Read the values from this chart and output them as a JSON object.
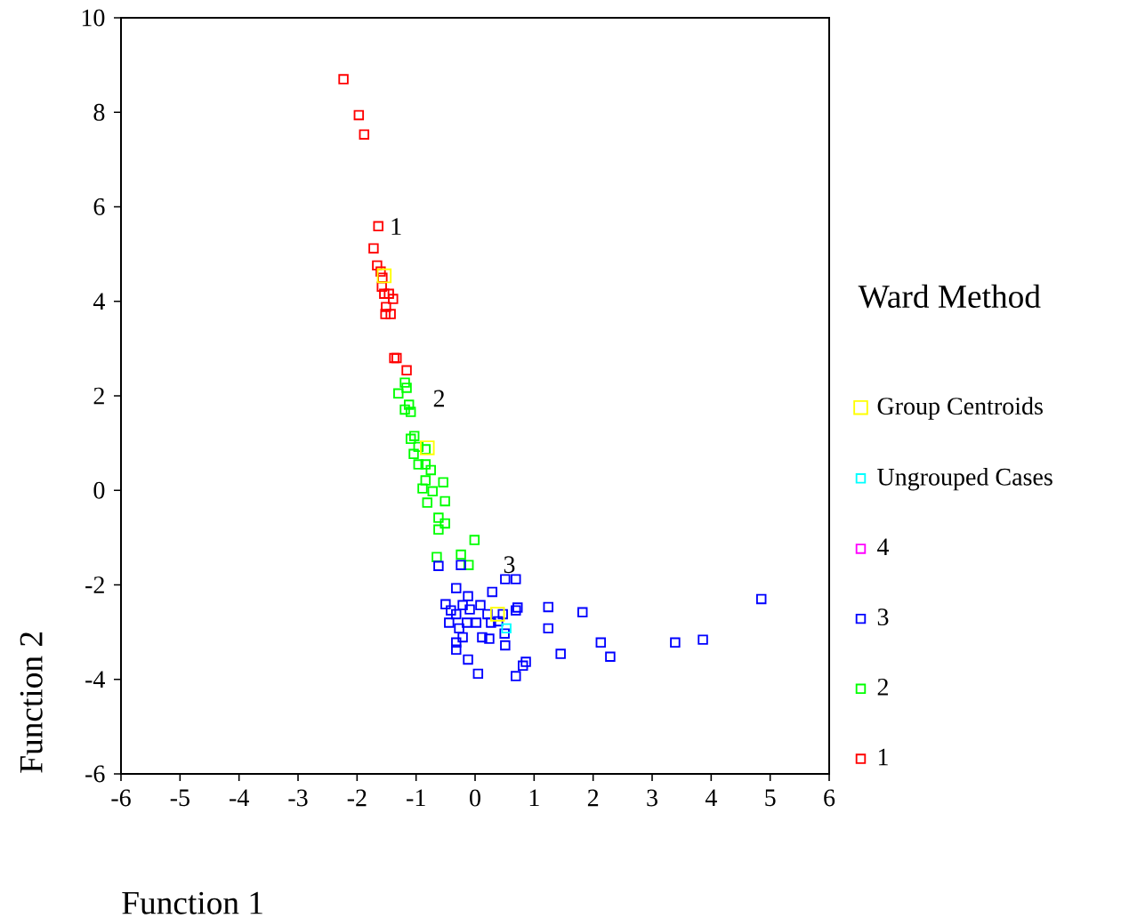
{
  "chart_data": {
    "type": "scatter",
    "xlabel": "Function 1",
    "ylabel": "Function 2",
    "legend_title": "Ward Method",
    "legend": "right",
    "marker": "square",
    "grid": false,
    "xlim": [
      -6,
      6
    ],
    "ylim": [
      -6,
      10
    ],
    "xticks": [
      -6,
      -5,
      -4,
      -3,
      -2,
      -1,
      0,
      1,
      2,
      3,
      4,
      5,
      6
    ],
    "yticks": [
      -6,
      -4,
      -2,
      0,
      2,
      4,
      6,
      8,
      10
    ],
    "annotations": [
      {
        "text": "1",
        "x": -1.54,
        "y": 4.54
      },
      {
        "text": "2",
        "x": -0.81,
        "y": 0.9
      },
      {
        "text": "3",
        "x": 0.38,
        "y": -2.62
      }
    ],
    "series": [
      {
        "name": "Group Centroids",
        "color": "#ffff00",
        "x": [
          -1.54,
          -0.81,
          0.38
        ],
        "values": [
          4.54,
          0.9,
          -2.62
        ]
      },
      {
        "name": "Ungrouped Cases",
        "color": "#00ffff",
        "x": [
          0.53
        ],
        "values": [
          -2.92
        ]
      },
      {
        "name": "4",
        "color": "#ff00ff"
      },
      {
        "name": "3",
        "color": "#0000ff",
        "x": [
          -0.62,
          -0.24,
          0.51,
          0.69,
          -0.32,
          -0.12,
          0.29,
          -0.5,
          -0.41,
          -0.32,
          -0.21,
          -0.09,
          0.09,
          0.21,
          0.47,
          0.69,
          0.72,
          1.24,
          1.82,
          4.85,
          -0.44,
          -0.27,
          -0.14,
          0.02,
          0.27,
          0.39,
          1.24,
          0.12,
          0.24,
          0.5,
          -0.32,
          -0.21,
          0.51,
          2.13,
          3.39,
          3.86,
          1.45,
          2.29,
          -0.12,
          0.86,
          0.81,
          0.05,
          0.69,
          -0.32
        ],
        "values": [
          -1.6,
          -1.58,
          -1.88,
          -1.88,
          -2.07,
          -2.24,
          -2.15,
          -2.41,
          -2.54,
          -2.62,
          -2.43,
          -2.52,
          -2.43,
          -2.62,
          -2.62,
          -2.54,
          -2.48,
          -2.47,
          -2.58,
          -2.3,
          -2.8,
          -2.92,
          -2.8,
          -2.8,
          -2.8,
          -2.77,
          -2.92,
          -3.11,
          -3.14,
          -3.03,
          -3.22,
          -3.11,
          -3.28,
          -3.22,
          -3.22,
          -3.16,
          -3.46,
          -3.52,
          -3.58,
          -3.63,
          -3.71,
          -3.88,
          -3.93,
          -3.37
        ]
      },
      {
        "name": "2",
        "color": "#00ff00",
        "x": [
          -1.3,
          -1.19,
          -1.16,
          -1.19,
          -1.12,
          -1.09,
          -1.03,
          -1.09,
          -0.96,
          -0.84,
          -1.04,
          -0.96,
          -0.84,
          -0.75,
          -0.84,
          -0.54,
          -0.89,
          -0.72,
          -0.51,
          -0.81,
          -0.62,
          -0.51,
          -0.62,
          -0.01,
          -0.24,
          -0.65,
          -0.11
        ],
        "values": [
          2.05,
          2.28,
          2.17,
          1.71,
          1.81,
          1.66,
          1.15,
          1.09,
          0.92,
          0.87,
          0.77,
          0.55,
          0.55,
          0.43,
          0.21,
          0.17,
          0.04,
          -0.02,
          -0.23,
          -0.26,
          -0.58,
          -0.7,
          -0.83,
          -1.05,
          -1.36,
          -1.41,
          -1.58
        ]
      },
      {
        "name": "1",
        "color": "#ff0000",
        "x": [
          -2.23,
          -1.97,
          -1.88,
          -1.64,
          -1.72,
          -1.66,
          -1.6,
          -1.57,
          -1.58,
          -1.54,
          -1.46,
          -1.39,
          -1.51,
          -1.43,
          -1.52,
          -1.37,
          -1.33,
          -1.16
        ],
        "values": [
          8.7,
          7.94,
          7.53,
          5.59,
          5.12,
          4.76,
          4.63,
          4.5,
          4.31,
          4.16,
          4.16,
          4.05,
          3.88,
          3.73,
          3.73,
          2.8,
          2.8,
          2.54
        ]
      }
    ]
  }
}
